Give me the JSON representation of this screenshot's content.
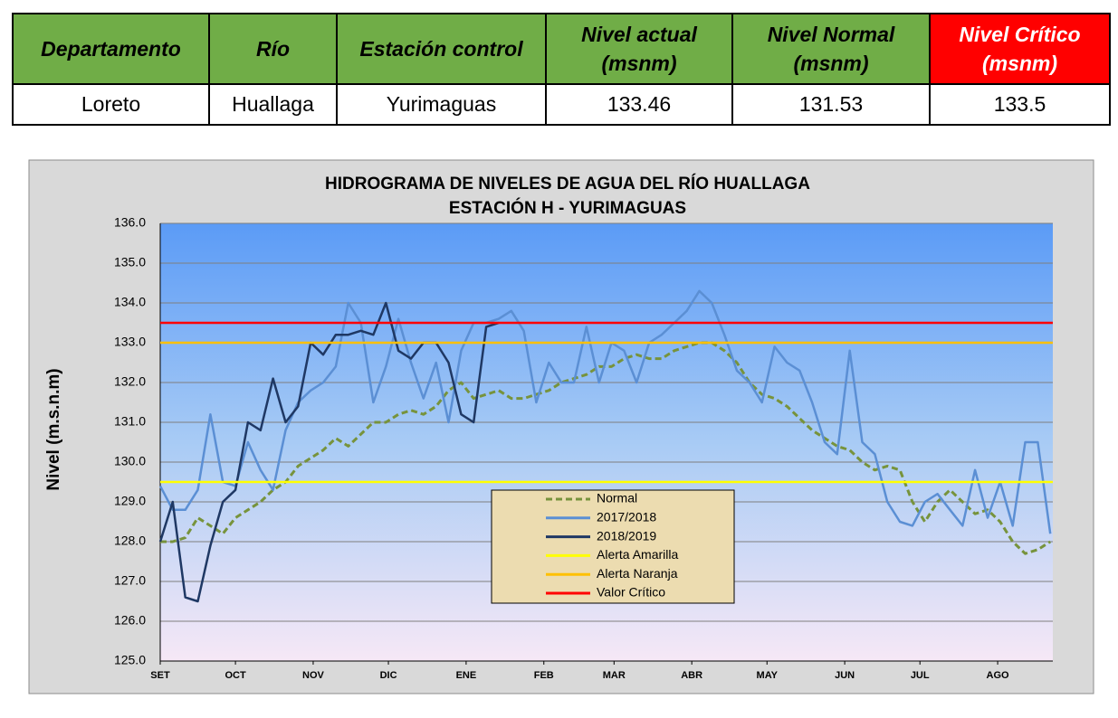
{
  "table": {
    "header": [
      "Departamento",
      "Río",
      "Estación control",
      "Nivel actual\n(msnm)",
      "Nivel Normal\n(msnm)",
      "Nivel Crítico\n(msnm)"
    ],
    "rows": [
      [
        "Loreto",
        "Huallaga",
        "Yurimaguas",
        133.46,
        131.53,
        133.5
      ]
    ]
  },
  "chart_data": {
    "type": "line",
    "title": "HIDROGRAMA DE NIVELES DE AGUA DEL RÍO HUALLAGA",
    "subtitle": "ESTACIÓN H - YURIMAGUAS",
    "y_label": "Nivel (m.s.n.m)",
    "x": [
      0,
      5,
      10,
      15,
      20,
      25,
      30,
      35,
      40,
      45,
      50,
      55,
      60,
      65,
      70,
      75,
      80,
      85,
      90,
      95,
      100,
      105,
      110,
      115,
      120,
      125,
      130,
      135,
      140,
      145,
      150,
      155,
      160,
      165,
      170,
      175,
      180,
      185,
      190,
      195,
      200,
      205,
      210,
      215,
      220,
      225,
      230,
      235,
      240,
      245,
      250,
      255,
      260,
      265,
      270,
      275,
      280,
      285,
      290,
      295,
      300,
      305,
      310,
      315,
      320,
      325,
      330,
      335,
      340,
      345,
      350,
      355
    ],
    "xlim": [
      0,
      356
    ],
    "xticks": [
      {
        "value": 0,
        "label": "SET"
      },
      {
        "value": 30,
        "label": "OCT"
      },
      {
        "value": 61,
        "label": "NOV"
      },
      {
        "value": 91,
        "label": "DIC"
      },
      {
        "value": 122,
        "label": "ENE"
      },
      {
        "value": 153,
        "label": "FEB"
      },
      {
        "value": 181,
        "label": "MAR"
      },
      {
        "value": 212,
        "label": "ABR"
      },
      {
        "value": 242,
        "label": "MAY"
      },
      {
        "value": 273,
        "label": "JUN"
      },
      {
        "value": 303,
        "label": "JUL"
      },
      {
        "value": 334,
        "label": "AGO"
      }
    ],
    "ylim": [
      125,
      136
    ],
    "yticks": [
      {
        "value": 125,
        "label": "125.0"
      },
      {
        "value": 126,
        "label": "126.0"
      },
      {
        "value": 127,
        "label": "127.0"
      },
      {
        "value": 128,
        "label": "128.0"
      },
      {
        "value": 129,
        "label": "129.0"
      },
      {
        "value": 130,
        "label": "130.0"
      },
      {
        "value": 131,
        "label": "131.0"
      },
      {
        "value": 132,
        "label": "132.0"
      },
      {
        "value": 133,
        "label": "133.0"
      },
      {
        "value": 134,
        "label": "134.0"
      },
      {
        "value": 135,
        "label": "135.0"
      },
      {
        "value": 136,
        "label": "136.0"
      }
    ],
    "grid": true,
    "series": [
      {
        "name": "Normal",
        "color": "#77933c",
        "line_style": "dashed",
        "values": [
          128.0,
          128.0,
          128.1,
          128.6,
          128.4,
          128.2,
          128.6,
          128.8,
          129.0,
          129.3,
          129.5,
          129.9,
          130.1,
          130.3,
          130.6,
          130.4,
          130.7,
          131.0,
          131.0,
          131.2,
          131.3,
          131.2,
          131.4,
          131.8,
          132.0,
          131.6,
          131.7,
          131.8,
          131.6,
          131.6,
          131.7,
          131.8,
          132.0,
          132.1,
          132.2,
          132.4,
          132.4,
          132.6,
          132.7,
          132.6,
          132.6,
          132.8,
          132.9,
          133.0,
          133.0,
          132.8,
          132.5,
          132.0,
          131.7,
          131.6,
          131.4,
          131.1,
          130.8,
          130.6,
          130.4,
          130.3,
          130.0,
          129.8,
          129.9,
          129.8,
          129.0,
          128.5,
          129.0,
          129.3,
          129.0,
          128.7,
          128.8,
          128.5,
          128.0,
          127.7,
          127.8,
          128.0
        ]
      },
      {
        "name": "2017/2018",
        "color": "#5b8fd4",
        "line_style": "solid",
        "values": [
          129.4,
          128.8,
          128.8,
          129.3,
          131.2,
          129.5,
          129.4,
          130.5,
          129.8,
          129.3,
          130.8,
          131.5,
          131.8,
          132.0,
          132.4,
          134.0,
          133.5,
          131.5,
          132.4,
          133.6,
          132.5,
          131.6,
          132.5,
          131.0,
          132.8,
          133.5,
          133.5,
          133.6,
          133.8,
          133.3,
          131.5,
          132.5,
          132.0,
          132.0,
          133.4,
          132.0,
          133.0,
          132.8,
          132.0,
          133.0,
          133.2,
          133.5,
          133.8,
          134.3,
          134.0,
          133.2,
          132.3,
          132.0,
          131.5,
          132.9,
          132.5,
          132.3,
          131.5,
          130.5,
          130.2,
          132.8,
          130.5,
          130.2,
          129.0,
          128.5,
          128.4,
          129.0,
          129.2,
          128.8,
          128.4,
          129.8,
          128.6,
          129.5,
          128.4,
          130.5,
          130.5,
          128.2
        ]
      },
      {
        "name": "2018/2019",
        "color": "#1f3864",
        "line_style": "solid",
        "values": [
          128.0,
          129.0,
          126.6,
          126.5,
          127.9,
          129.0,
          129.3,
          131.0,
          130.8,
          132.1,
          131.0,
          131.4,
          133.0,
          132.7,
          133.2,
          133.2,
          133.3,
          133.2,
          134.0,
          132.8,
          132.6,
          133.0,
          133.0,
          132.5,
          131.2,
          131.0,
          133.4,
          133.5,
          null,
          null,
          null,
          null,
          null,
          null,
          null,
          null,
          null,
          null,
          null,
          null,
          null,
          null,
          null,
          null,
          null,
          null,
          null,
          null,
          null,
          null,
          null,
          null,
          null,
          null,
          null,
          null,
          null,
          null,
          null,
          null,
          null,
          null,
          null,
          null,
          null,
          null,
          null,
          null,
          null,
          null,
          null,
          null
        ]
      }
    ],
    "reference_lines": [
      {
        "name": "Alerta Amarilla",
        "color": "#ffff00",
        "value": 129.5
      },
      {
        "name": "Alerta Naranja",
        "color": "#ffc000",
        "value": 133.0
      },
      {
        "name": "Valor Crítico",
        "color": "#ff0000",
        "value": 133.5
      }
    ]
  }
}
